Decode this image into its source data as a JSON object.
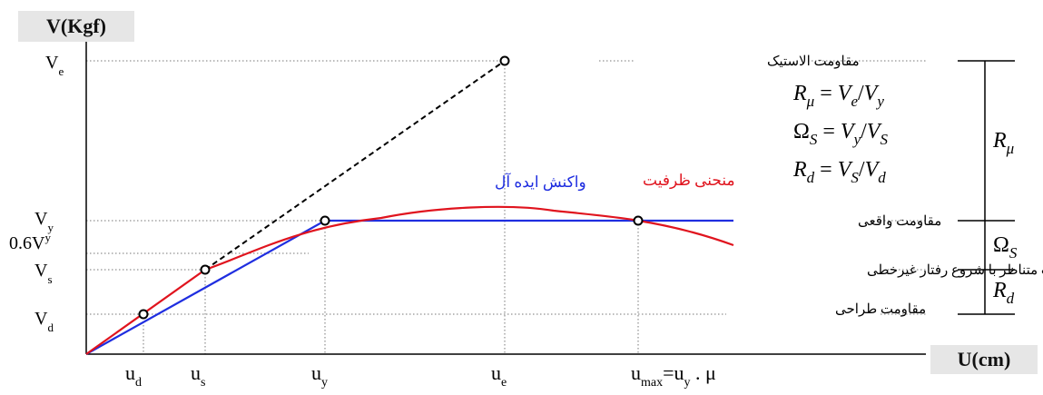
{
  "y_axis_title": "V(Kgf)",
  "x_axis_title": "U(cm)",
  "y_ticks": {
    "ve": {
      "main": "V",
      "sub": "e"
    },
    "vy": {
      "main": "V",
      "sub": "y"
    },
    "v06y": {
      "main": "0.6V",
      "sub": "y"
    },
    "vs": {
      "main": "V",
      "sub": "s"
    },
    "vd": {
      "main": "V",
      "sub": "d"
    }
  },
  "x_ticks": {
    "ud": {
      "main": "u",
      "sub": "d"
    },
    "us": {
      "main": "u",
      "sub": "s"
    },
    "uy": {
      "main": "u",
      "sub": "y"
    },
    "ue": {
      "main": "u",
      "sub": "e"
    },
    "umax": {
      "main": "u",
      "sub": "max",
      "rest": "=u",
      "sub2": "y",
      "tail": " . μ"
    }
  },
  "curve_labels": {
    "ideal": "واکنش ایده آل",
    "capacity": "منحنی ظرفیت"
  },
  "strength_labels": {
    "elastic": "مقاومت الاستیک",
    "actual": "مقاومت واقعی",
    "nonlinear": "مقاومت متناظر با شروع رفتار غیرخطی",
    "design": "مقاومت طراحی"
  },
  "formulas": {
    "r_mu": {
      "lhs": "R",
      "lhs_sub": "μ",
      "a": "V",
      "a_sub": "e",
      "b": "V",
      "b_sub": "y"
    },
    "omega": {
      "lhs": "Ω",
      "lhs_sub": "S",
      "a": "V",
      "a_sub": "y",
      "b": "V",
      "b_sub": "S"
    },
    "r_d": {
      "lhs": "R",
      "lhs_sub": "d",
      "a": "V",
      "a_sub": "S",
      "b": "V",
      "b_sub": "d"
    }
  },
  "factors": {
    "r_mu": {
      "main": "R",
      "sub": "μ"
    },
    "omega": {
      "main": "Ω",
      "sub": "S"
    },
    "r_d": {
      "main": "R",
      "sub": "d"
    }
  },
  "colors": {
    "ideal": "#1f2ee0",
    "capacity": "#e0141e",
    "elastic": "#000000",
    "grid": "#777777"
  }
}
